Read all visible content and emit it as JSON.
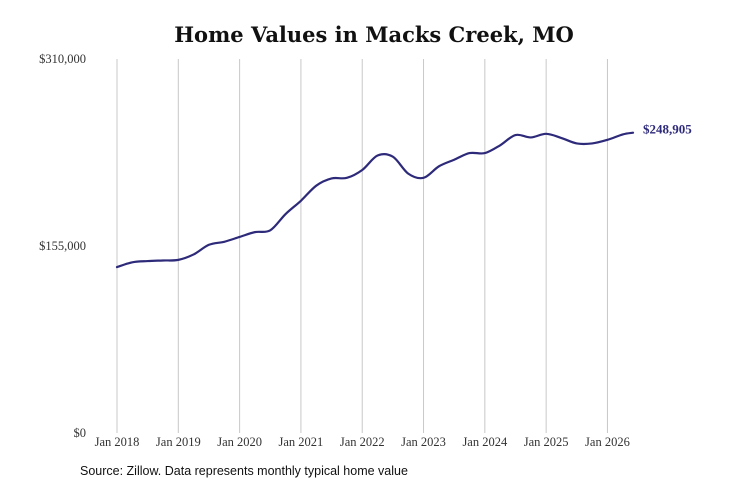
{
  "chart_data": {
    "type": "line",
    "title": "Home Values in Macks Creek, MO",
    "xlabel": "",
    "ylabel": "",
    "ylim": [
      0,
      310000
    ],
    "y_tick_labels": [
      "$310,000",
      "$155,000",
      "$0"
    ],
    "y_tick_values": [
      310000,
      155000,
      0
    ],
    "x_tick_labels": [
      "Jan 2018",
      "Jan 2019",
      "Jan 2020",
      "Jan 2021",
      "Jan 2022",
      "Jan 2023",
      "Jan 2024",
      "Jan 2025",
      "Jan 2026"
    ],
    "x_tick_values": [
      "2018-01",
      "2019-01",
      "2020-01",
      "2021-01",
      "2022-01",
      "2023-01",
      "2024-01",
      "2025-01",
      "2026-01"
    ],
    "grid": "vertical",
    "series": [
      {
        "name": "",
        "color": "#2e2a7a",
        "end_label": "$248,905",
        "points": [
          [
            "2018-01",
            137500
          ],
          [
            "2018-04",
            141500
          ],
          [
            "2018-07",
            142500
          ],
          [
            "2018-10",
            143000
          ],
          [
            "2019-01",
            143500
          ],
          [
            "2019-04",
            148000
          ],
          [
            "2019-07",
            156000
          ],
          [
            "2019-10",
            158500
          ],
          [
            "2020-01",
            162500
          ],
          [
            "2020-04",
            166500
          ],
          [
            "2020-07",
            168000
          ],
          [
            "2020-10",
            181500
          ],
          [
            "2021-01",
            192500
          ],
          [
            "2021-04",
            205000
          ],
          [
            "2021-07",
            211000
          ],
          [
            "2021-10",
            211500
          ],
          [
            "2022-01",
            218000
          ],
          [
            "2022-04",
            230000
          ],
          [
            "2022-07",
            229000
          ],
          [
            "2022-10",
            215000
          ],
          [
            "2023-01",
            211500
          ],
          [
            "2023-04",
            221000
          ],
          [
            "2023-07",
            226500
          ],
          [
            "2023-10",
            232000
          ],
          [
            "2024-01",
            232000
          ],
          [
            "2024-04",
            238500
          ],
          [
            "2024-07",
            247000
          ],
          [
            "2024-10",
            245000
          ],
          [
            "2025-01",
            248000
          ],
          [
            "2025-04",
            244500
          ],
          [
            "2025-07",
            240000
          ],
          [
            "2025-10",
            240000
          ],
          [
            "2026-01",
            243000
          ],
          [
            "2026-04",
            247500
          ],
          [
            "2026-06",
            248905
          ]
        ]
      }
    ]
  },
  "footer": {
    "source": "Source: Zillow. Data represents monthly typical home value"
  }
}
